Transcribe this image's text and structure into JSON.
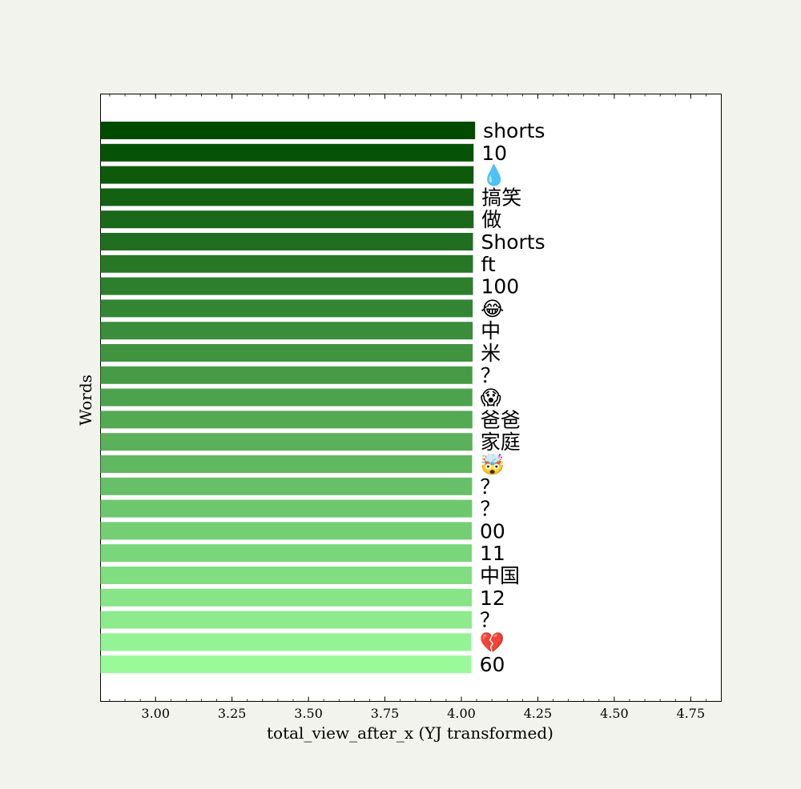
{
  "chart_data": {
    "type": "bar",
    "orientation": "horizontal",
    "title": "",
    "xlabel": "total_view_after_x (YJ transformed)",
    "ylabel": "Words",
    "xlim": [
      2.82,
      4.85
    ],
    "xticks": [
      "3.00",
      "3.25",
      "3.50",
      "3.75",
      "4.00",
      "4.25",
      "4.50",
      "4.75"
    ],
    "xtick_values": [
      3.0,
      3.25,
      3.5,
      3.75,
      4.0,
      4.25,
      4.5,
      4.75
    ],
    "grid": false,
    "categories": [
      "shorts",
      "10",
      "💧",
      "搞笑",
      "做",
      "Shorts",
      "ft",
      "100",
      "😂",
      "中",
      "米",
      "？",
      "😱",
      "爸爸",
      "家庭",
      "🤯",
      "？",
      "？",
      "00",
      "11",
      "中国",
      "12",
      "？",
      "💔",
      "60"
    ],
    "values": [
      4.045,
      4.04,
      4.04,
      4.04,
      4.04,
      4.038,
      4.038,
      4.038,
      4.037,
      4.037,
      4.037,
      4.036,
      4.036,
      4.036,
      4.036,
      4.035,
      4.035,
      4.035,
      4.034,
      4.034,
      4.034,
      4.034,
      4.034,
      4.033,
      4.033
    ],
    "colors": {
      "start": "#004b00",
      "end": "#9afa9a"
    }
  }
}
